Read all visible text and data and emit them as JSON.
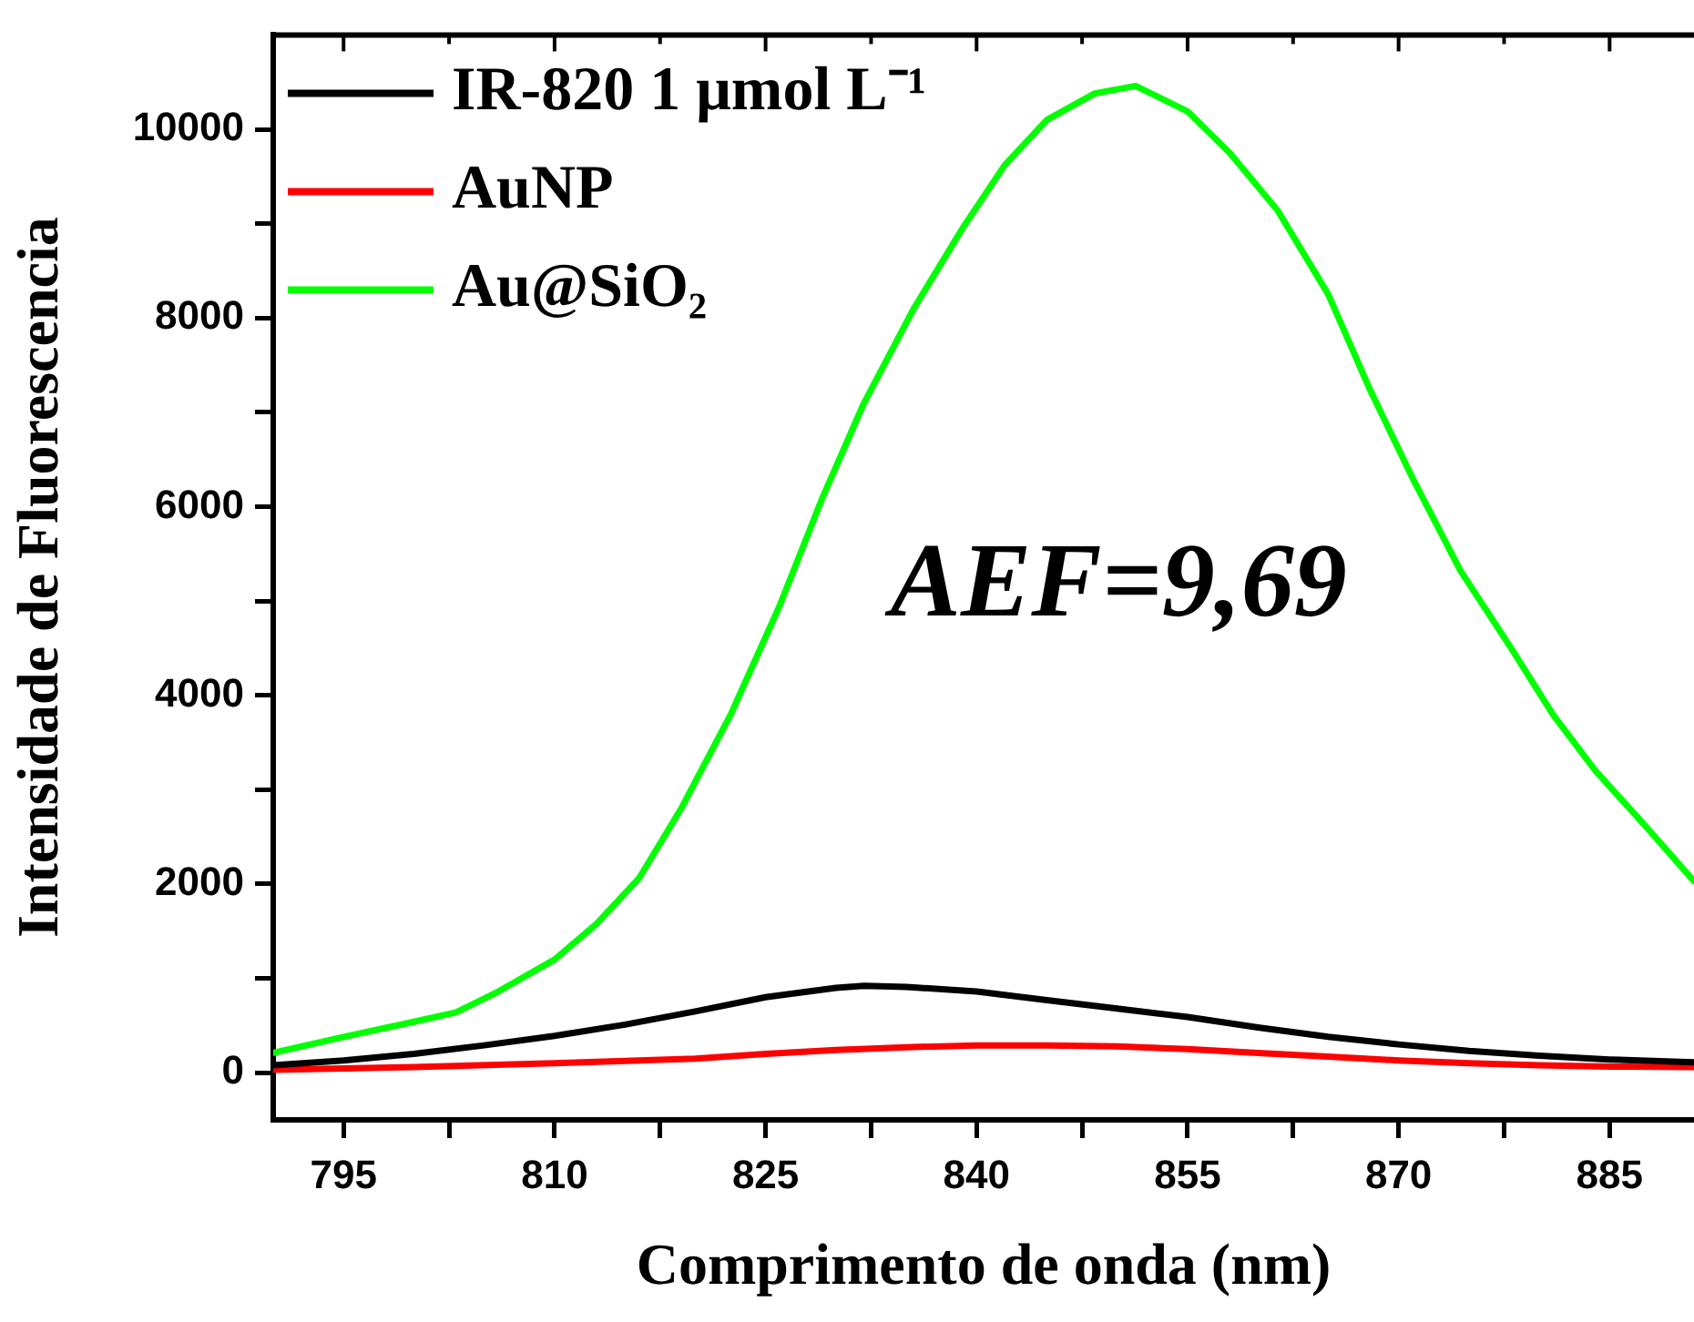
{
  "chart_data": {
    "type": "line",
    "xlabel": "Comprimento de onda (nm)",
    "ylabel": "Intensidade de Fluorescencia",
    "xlim": [
      790,
      891
    ],
    "ylim": [
      -500,
      11000
    ],
    "xticks": [
      795,
      {
        "value": 802.5,
        "label": null
      },
      810,
      {
        "value": 817.5,
        "label": null
      },
      825,
      {
        "value": 832.5,
        "label": null
      },
      840,
      {
        "value": 847.5,
        "label": null
      },
      855,
      {
        "value": 862.5,
        "label": null
      },
      870,
      {
        "value": 877.5,
        "label": null
      },
      885
    ],
    "yticks": [
      0,
      {
        "value": 1000,
        "label": null
      },
      2000,
      {
        "value": 3000,
        "label": null
      },
      4000,
      {
        "value": 5000,
        "label": null
      },
      6000,
      {
        "value": 7000,
        "label": null
      },
      8000,
      {
        "value": 9000,
        "label": null
      },
      10000
    ],
    "grid": false,
    "legend": "top left",
    "marker": "none",
    "line_style": "solid",
    "annotations": [
      "AEF=9,69"
    ],
    "series": [
      {
        "name": "IR-820 1 μmol L⁻¹",
        "color": "#000000",
        "x": [
          790,
          795,
          800,
          805,
          810,
          815,
          820,
          825,
          830,
          832,
          835,
          840,
          845,
          850,
          855,
          860,
          865,
          870,
          875,
          880,
          885,
          891
        ],
        "values": [
          80,
          130,
          200,
          290,
          390,
          510,
          650,
          800,
          900,
          920,
          910,
          860,
          770,
          680,
          590,
          480,
          380,
          300,
          230,
          180,
          140,
          110
        ]
      },
      {
        "name": "AuNP",
        "color": "#ff0000",
        "x": [
          790,
          800,
          810,
          820,
          825,
          830,
          835,
          840,
          845,
          850,
          855,
          860,
          865,
          870,
          875,
          880,
          885,
          891
        ],
        "values": [
          30,
          60,
          100,
          150,
          200,
          240,
          270,
          290,
          290,
          280,
          250,
          210,
          170,
          130,
          100,
          80,
          65,
          60
        ]
      },
      {
        "name": "Au@SiO₂",
        "color": "#00ff00",
        "x": [
          790,
          795,
          800,
          803,
          806,
          810,
          813,
          816,
          819,
          822.5,
          826,
          829,
          832,
          835.5,
          839,
          842,
          845,
          848.4,
          851.3,
          855,
          858,
          861.4,
          865,
          868,
          871,
          874.4,
          878,
          881,
          884,
          887.4,
          891
        ],
        "values": [
          210,
          380,
          540,
          640,
          860,
          1200,
          1580,
          2060,
          2800,
          3790,
          4950,
          6080,
          7100,
          8090,
          8950,
          9620,
          10100,
          10380,
          10460,
          10190,
          9750,
          9140,
          8250,
          7230,
          6300,
          5320,
          4500,
          3790,
          3200,
          2640,
          2030
        ]
      }
    ]
  }
}
